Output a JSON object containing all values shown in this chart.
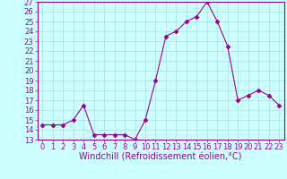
{
  "x": [
    0,
    1,
    2,
    3,
    4,
    5,
    6,
    7,
    8,
    9,
    10,
    11,
    12,
    13,
    14,
    15,
    16,
    17,
    18,
    19,
    20,
    21,
    22,
    23
  ],
  "y": [
    14.5,
    14.5,
    14.5,
    15.0,
    16.5,
    13.5,
    13.5,
    13.5,
    13.5,
    13.0,
    15.0,
    19.0,
    23.5,
    24.0,
    25.0,
    25.5,
    27.0,
    25.0,
    22.5,
    17.0,
    17.5,
    18.0,
    17.5,
    16.5
  ],
  "line_color": "#990099",
  "marker": "D",
  "marker_size": 2.5,
  "bg_color": "#ccffff",
  "grid_color": "#aadddd",
  "xlabel": "Windchill (Refroidissement éolien,°C)",
  "xlim": [
    -0.5,
    23.5
  ],
  "ylim": [
    13,
    27
  ],
  "yticks": [
    13,
    14,
    15,
    16,
    17,
    18,
    19,
    20,
    21,
    22,
    23,
    24,
    25,
    26,
    27
  ],
  "xticks": [
    0,
    1,
    2,
    3,
    4,
    5,
    6,
    7,
    8,
    9,
    10,
    11,
    12,
    13,
    14,
    15,
    16,
    17,
    18,
    19,
    20,
    21,
    22,
    23
  ],
  "tick_fontsize": 6,
  "xlabel_fontsize": 7,
  "label_color": "#990099",
  "tick_color": "#990099",
  "spine_color": "#990099"
}
